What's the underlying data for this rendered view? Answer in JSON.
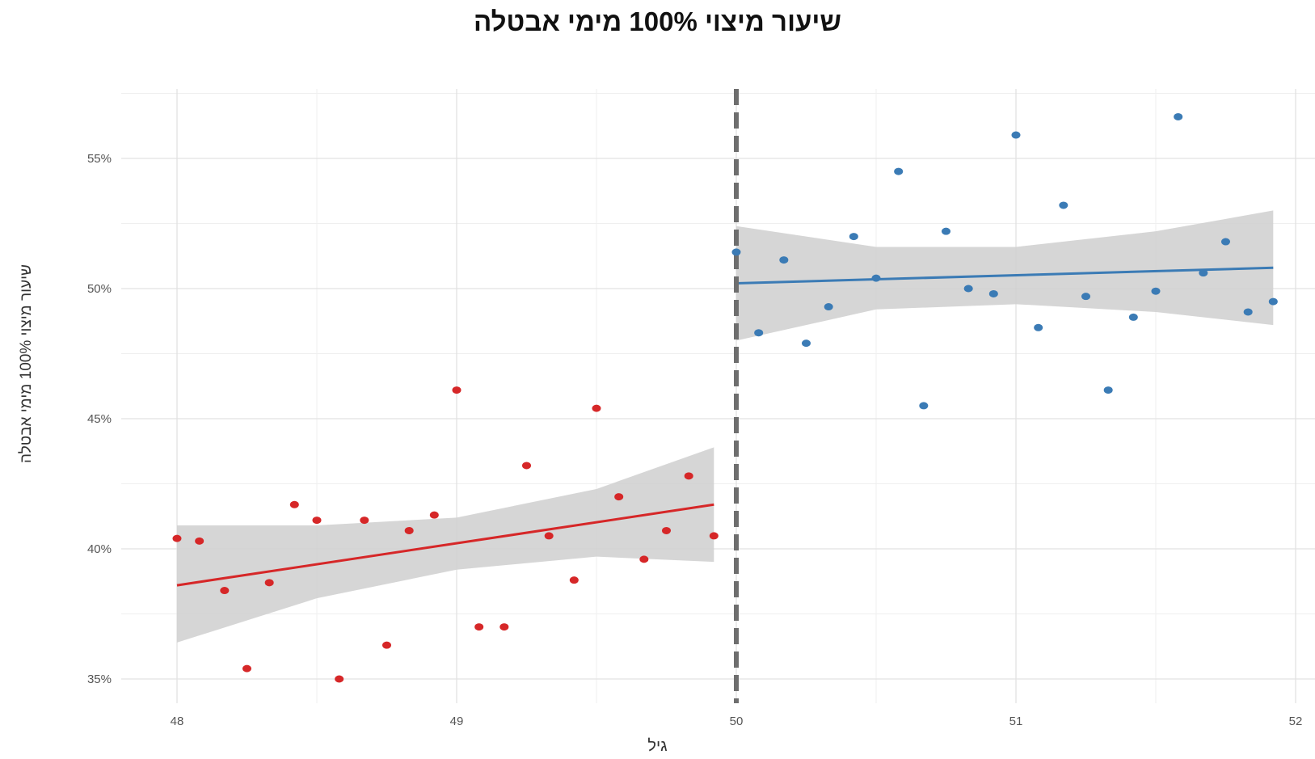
{
  "title": "שיעור מיצוי 100% מימי אבטלה",
  "chart_data": {
    "type": "scatter",
    "title": "שיעור מיצוי 100% מימי אבטלה",
    "xlabel": "גיל",
    "ylabel": "שיעור מיצוי 100% מימי אבטלה",
    "xlim": [
      48,
      52
    ],
    "ylim": [
      35,
      56.5
    ],
    "x_ticks": [
      48,
      49,
      50,
      51,
      52
    ],
    "x_tick_labels": [
      "48",
      "49",
      "50",
      "51",
      "52"
    ],
    "y_ticks": [
      35,
      40,
      45,
      50,
      55
    ],
    "y_tick_labels": [
      "35%",
      "40%",
      "45%",
      "50%",
      "55%"
    ],
    "grid": true,
    "cutoff": 50,
    "colors": {
      "below": "#d62728",
      "above": "#3b7bb5",
      "band": "#cfcfcf",
      "cutoff_line": "#6e6e6e"
    },
    "series": [
      {
        "points": [
          [
            48.0,
            40.4
          ],
          [
            48.08,
            40.3
          ],
          [
            48.17,
            38.4
          ],
          [
            48.25,
            35.4
          ],
          [
            48.33,
            38.7
          ],
          [
            48.42,
            41.7
          ],
          [
            48.5,
            41.1
          ],
          [
            48.58,
            35.0
          ],
          [
            48.67,
            41.1
          ],
          [
            48.75,
            36.3
          ],
          [
            48.83,
            40.7
          ],
          [
            48.92,
            41.3
          ],
          [
            49.0,
            46.1
          ],
          [
            49.08,
            37.0
          ],
          [
            49.17,
            37.0
          ],
          [
            49.25,
            43.2
          ],
          [
            49.33,
            40.5
          ],
          [
            49.42,
            38.8
          ],
          [
            49.5,
            45.4
          ],
          [
            49.58,
            42.0
          ],
          [
            49.67,
            39.6
          ],
          [
            49.75,
            40.7
          ],
          [
            49.83,
            42.8
          ],
          [
            49.92,
            40.5
          ]
        ],
        "fit": {
          "x": [
            48.0,
            49.92
          ],
          "y": [
            38.6,
            41.7
          ]
        },
        "band": {
          "x": [
            48.0,
            48.5,
            49.0,
            49.5,
            49.92
          ],
          "upper": [
            40.9,
            40.9,
            41.2,
            42.3,
            43.9
          ],
          "lower": [
            36.4,
            38.1,
            39.2,
            39.7,
            39.5
          ]
        }
      },
      {
        "points": [
          [
            50.0,
            51.4
          ],
          [
            50.08,
            48.3
          ],
          [
            50.17,
            51.1
          ],
          [
            50.25,
            47.9
          ],
          [
            50.33,
            49.3
          ],
          [
            50.42,
            52.0
          ],
          [
            50.5,
            50.4
          ],
          [
            50.58,
            54.5
          ],
          [
            50.67,
            45.5
          ],
          [
            50.75,
            52.2
          ],
          [
            50.83,
            50.0
          ],
          [
            50.92,
            49.8
          ],
          [
            51.0,
            55.9
          ],
          [
            51.08,
            48.5
          ],
          [
            51.17,
            53.2
          ],
          [
            51.25,
            49.7
          ],
          [
            51.33,
            46.1
          ],
          [
            51.42,
            48.9
          ],
          [
            51.5,
            49.9
          ],
          [
            51.58,
            56.6
          ],
          [
            51.67,
            50.6
          ],
          [
            51.75,
            51.8
          ],
          [
            51.83,
            49.1
          ],
          [
            51.92,
            49.5
          ]
        ],
        "fit": {
          "x": [
            50.0,
            51.92
          ],
          "y": [
            50.2,
            50.8
          ]
        },
        "band": {
          "x": [
            50.0,
            50.5,
            51.0,
            51.5,
            51.92
          ],
          "upper": [
            52.4,
            51.6,
            51.6,
            52.2,
            53.0
          ],
          "lower": [
            48.0,
            49.2,
            49.4,
            49.1,
            48.6
          ]
        }
      }
    ]
  }
}
